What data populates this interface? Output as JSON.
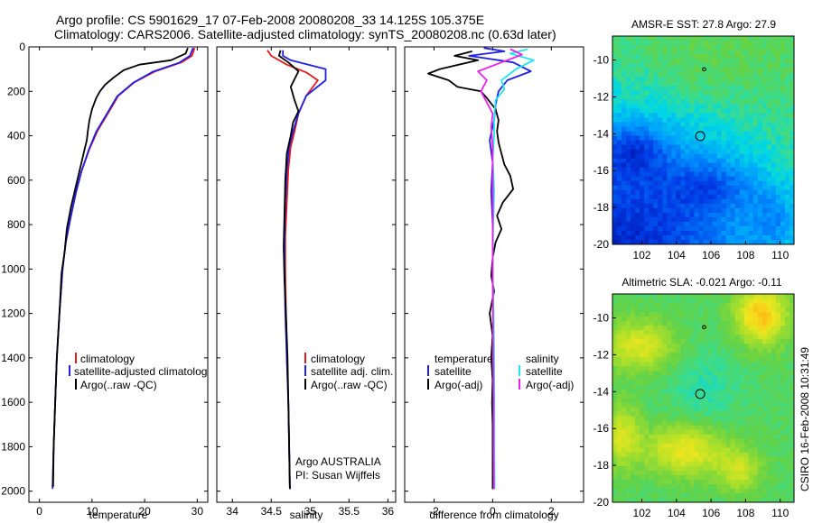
{
  "header": {
    "line1": "Argo profile: CS 5901629_17 07-Feb-2008 20080208_33 14.125S 105.375E",
    "line2": "Climatology: CARS2006. Satellite-adjusted climatology: synTS_20080208.nc (0.63d later)"
  },
  "side_note": "CSIRO 16-Feb-2008 10:31:49",
  "colors": {
    "climatology": "#e41a1c",
    "satellite": "#1f1fe6",
    "argo": "#000000",
    "sat_salinity": "#22e5f0",
    "argo_salinity_adj": "#ee22ee"
  },
  "chart_data": [
    {
      "type": "line",
      "xlabel": "temperature",
      "xlim": [
        -2,
        32
      ],
      "ylim": [
        2050,
        0
      ],
      "xticks": [
        0,
        10,
        20,
        30
      ],
      "yticks": [
        0,
        200,
        400,
        600,
        800,
        1000,
        1200,
        1400,
        1600,
        1800,
        2000
      ],
      "legend": [
        "climatology",
        "satellite-adjusted climatolog",
        "Argo(..raw -QC)"
      ],
      "series": [
        {
          "name": "climatology",
          "color": "#e41a1c",
          "points": [
            [
              29.5,
              5
            ],
            [
              29,
              40
            ],
            [
              27,
              70
            ],
            [
              22,
              110
            ],
            [
              18,
              160
            ],
            [
              15,
              220
            ],
            [
              13,
              300
            ],
            [
              11,
              380
            ],
            [
              9.5,
              460
            ],
            [
              8,
              560
            ],
            [
              7,
              650
            ],
            [
              6,
              760
            ],
            [
              5,
              880
            ],
            [
              4.4,
              1000
            ],
            [
              3.8,
              1200
            ],
            [
              3.3,
              1400
            ],
            [
              3,
              1600
            ],
            [
              2.7,
              1800
            ],
            [
              2.5,
              1980
            ]
          ]
        },
        {
          "name": "satellite-adjusted climatology",
          "color": "#1f1fe6",
          "points": [
            [
              29.2,
              5
            ],
            [
              28.6,
              40
            ],
            [
              26.5,
              72
            ],
            [
              21.5,
              112
            ],
            [
              17.8,
              162
            ],
            [
              14.8,
              222
            ],
            [
              12.8,
              302
            ],
            [
              10.8,
              382
            ],
            [
              9.4,
              462
            ],
            [
              8,
              560
            ],
            [
              7,
              650
            ],
            [
              6,
              760
            ],
            [
              5,
              880
            ],
            [
              4.4,
              1000
            ],
            [
              3.8,
              1200
            ],
            [
              3.3,
              1400
            ],
            [
              3,
              1600
            ],
            [
              2.7,
              1800
            ],
            [
              2.5,
              1990
            ]
          ]
        },
        {
          "name": "Argo(..raw -QC)",
          "color": "#000000",
          "points": [
            [
              28.2,
              5
            ],
            [
              27.8,
              30
            ],
            [
              25,
              60
            ],
            [
              19,
              80
            ],
            [
              16,
              105
            ],
            [
              14,
              140
            ],
            [
              12.5,
              170
            ],
            [
              11.5,
              200
            ],
            [
              10.8,
              230
            ],
            [
              10,
              280
            ],
            [
              9.5,
              330
            ],
            [
              9.2,
              380
            ],
            [
              9,
              420
            ],
            [
              8.5,
              470
            ],
            [
              7.8,
              540
            ],
            [
              7,
              620
            ],
            [
              6,
              720
            ],
            [
              5.2,
              820
            ],
            [
              4.8,
              920
            ],
            [
              4.2,
              1020
            ],
            [
              3.8,
              1200
            ],
            [
              3.3,
              1400
            ],
            [
              3,
              1600
            ],
            [
              2.7,
              1800
            ],
            [
              2.6,
              1980
            ]
          ]
        }
      ]
    },
    {
      "type": "line",
      "xlabel": "salinity",
      "xlim": [
        33.8,
        36.1
      ],
      "ylim": [
        2050,
        0
      ],
      "xticks": [
        34,
        34.5,
        35,
        35.5,
        36
      ],
      "legend": [
        "climatology",
        "satellite adj. clim.",
        "Argo(..raw -QC)"
      ],
      "annotation": [
        "Argo AUSTRALIA",
        "PI: Susan Wijffels"
      ],
      "series": [
        {
          "name": "climatology",
          "color": "#e41a1c",
          "points": [
            [
              34.45,
              15
            ],
            [
              34.5,
              40
            ],
            [
              34.7,
              80
            ],
            [
              34.95,
              115
            ],
            [
              35.1,
              150
            ],
            [
              34.95,
              220
            ],
            [
              34.85,
              300
            ],
            [
              34.8,
              380
            ],
            [
              34.75,
              450
            ],
            [
              34.72,
              550
            ],
            [
              34.7,
              700
            ],
            [
              34.68,
              850
            ],
            [
              34.68,
              1000
            ],
            [
              34.69,
              1200
            ],
            [
              34.7,
              1400
            ],
            [
              34.72,
              1600
            ],
            [
              34.73,
              1800
            ],
            [
              34.74,
              1990
            ]
          ]
        },
        {
          "name": "satellite adj. clim.",
          "color": "#1f1fe6",
          "points": [
            [
              34.65,
              15
            ],
            [
              34.65,
              40
            ],
            [
              34.75,
              60
            ],
            [
              35.2,
              100
            ],
            [
              35.2,
              150
            ],
            [
              34.95,
              220
            ],
            [
              34.85,
              300
            ],
            [
              34.78,
              380
            ],
            [
              34.73,
              450
            ],
            [
              34.7,
              550
            ],
            [
              34.68,
              700
            ],
            [
              34.67,
              850
            ],
            [
              34.67,
              1000
            ],
            [
              34.68,
              1200
            ],
            [
              34.7,
              1400
            ],
            [
              34.72,
              1600
            ],
            [
              34.73,
              1800
            ],
            [
              34.74,
              1990
            ]
          ]
        },
        {
          "name": "Argo(..raw -QC)",
          "color": "#000000",
          "points": [
            [
              34.62,
              15
            ],
            [
              34.6,
              40
            ],
            [
              34.72,
              70
            ],
            [
              34.85,
              110
            ],
            [
              34.75,
              180
            ],
            [
              34.8,
              240
            ],
            [
              34.85,
              290
            ],
            [
              34.78,
              340
            ],
            [
              34.75,
              400
            ],
            [
              34.7,
              480
            ],
            [
              34.68,
              600
            ],
            [
              34.67,
              750
            ],
            [
              34.66,
              900
            ],
            [
              34.67,
              1050
            ],
            [
              34.69,
              1200
            ],
            [
              34.71,
              1400
            ],
            [
              34.72,
              1600
            ],
            [
              34.73,
              1800
            ],
            [
              34.74,
              1990
            ]
          ]
        }
      ]
    },
    {
      "type": "line",
      "xlabel": "difference from climatology",
      "xlim": [
        -3,
        3.1
      ],
      "ylim": [
        2050,
        0
      ],
      "xticks": [
        -2,
        0,
        2
      ],
      "legend_left_title": "temperature",
      "legend_right_title": "salinity",
      "legend_left": [
        "satellite",
        "Argo(-adj)"
      ],
      "legend_right": [
        "satellite",
        "Argo(-adj)"
      ],
      "series": [
        {
          "name": "satellite",
          "color": "#1f1fe6",
          "points": [
            [
              -0.3,
              5
            ],
            [
              0.4,
              20
            ],
            [
              -0.8,
              40
            ],
            [
              0.7,
              70
            ],
            [
              1.3,
              110
            ],
            [
              0.5,
              150
            ],
            [
              0.2,
              200
            ],
            [
              0.1,
              260
            ],
            [
              0.05,
              330
            ],
            [
              -0.1,
              420
            ],
            [
              0,
              520
            ],
            [
              -0.05,
              650
            ],
            [
              0,
              800
            ],
            [
              0,
              1000
            ],
            [
              0.02,
              1200
            ],
            [
              0.02,
              1400
            ],
            [
              0.02,
              1600
            ],
            [
              0.02,
              1800
            ],
            [
              0.02,
              1990
            ]
          ]
        },
        {
          "name": "Argo(-adj)",
          "color": "#000000",
          "points": [
            [
              -0.7,
              20
            ],
            [
              -1.3,
              40
            ],
            [
              -0.5,
              60
            ],
            [
              -1.8,
              100
            ],
            [
              -2.2,
              120
            ],
            [
              -1.5,
              150
            ],
            [
              -1.2,
              180
            ],
            [
              -0.4,
              200
            ],
            [
              -0.2,
              230
            ],
            [
              0.1,
              280
            ],
            [
              0.2,
              330
            ],
            [
              0.15,
              380
            ],
            [
              0.2,
              430
            ],
            [
              0.3,
              480
            ],
            [
              0.4,
              530
            ],
            [
              0.6,
              580
            ],
            [
              0.7,
              640
            ],
            [
              0.35,
              700
            ],
            [
              0.15,
              760
            ],
            [
              0.3,
              820
            ],
            [
              0.1,
              880
            ],
            [
              0,
              950
            ],
            [
              -0.05,
              1030
            ],
            [
              0.05,
              1100
            ],
            [
              -0.1,
              1200
            ],
            [
              0,
              1300
            ],
            [
              -0.05,
              1400
            ],
            [
              0,
              1500
            ],
            [
              -0.02,
              1600
            ],
            [
              0,
              1700
            ],
            [
              0,
              1800
            ],
            [
              0,
              1990
            ]
          ]
        },
        {
          "name": "satellite (salinity)",
          "color": "#22e5f0",
          "points": [
            [
              1.2,
              10
            ],
            [
              0.6,
              30
            ],
            [
              1.4,
              60
            ],
            [
              0.8,
              100
            ],
            [
              0.3,
              150
            ],
            [
              0.4,
              190
            ],
            [
              0.1,
              240
            ],
            [
              0.05,
              320
            ],
            [
              0.05,
              400
            ],
            [
              0,
              500
            ],
            [
              0.05,
              650
            ],
            [
              0.02,
              800
            ],
            [
              0,
              1000
            ],
            [
              0.03,
              1200
            ],
            [
              0.05,
              1400
            ],
            [
              0.06,
              1600
            ],
            [
              0.06,
              1800
            ],
            [
              0.07,
              1990
            ]
          ]
        },
        {
          "name": "Argo(-adj) (salinity)",
          "color": "#ee22ee",
          "points": [
            [
              0.6,
              10
            ],
            [
              1.0,
              35
            ],
            [
              0.3,
              70
            ],
            [
              -0.5,
              110
            ],
            [
              -0.2,
              150
            ],
            [
              -0.4,
              200
            ],
            [
              -0.2,
              250
            ],
            [
              0,
              300
            ],
            [
              -0.05,
              360
            ],
            [
              0,
              450
            ],
            [
              0,
              550
            ],
            [
              0.01,
              700
            ],
            [
              0,
              850
            ],
            [
              0,
              1000
            ],
            [
              0.01,
              1200
            ],
            [
              0.02,
              1400
            ],
            [
              0.03,
              1600
            ],
            [
              0.03,
              1800
            ],
            [
              0.04,
              1990
            ]
          ]
        }
      ]
    },
    {
      "type": "heatmap",
      "title": "AMSR-E SST: 27.8 Argo: 27.9",
      "xlim": [
        100.3,
        110.8
      ],
      "ylim": [
        -20,
        -8.7
      ],
      "xticks": [
        102,
        104,
        106,
        108,
        110
      ],
      "yticks": [
        -10,
        -12,
        -14,
        -16,
        -18,
        -20
      ],
      "argo_position": [
        105.375,
        -14.125
      ],
      "star_position": [
        105.6,
        -10.5
      ]
    },
    {
      "type": "heatmap",
      "title": "Altimetric SLA: -0.021 Argo: -0.11",
      "xlim": [
        100.3,
        110.8
      ],
      "ylim": [
        -20,
        -8.7
      ],
      "xticks": [
        102,
        104,
        106,
        108,
        110
      ],
      "yticks": [
        -10,
        -12,
        -14,
        -16,
        -18,
        -20
      ],
      "argo_position": [
        105.375,
        -14.125
      ],
      "star_position": [
        105.6,
        -10.5
      ]
    }
  ]
}
